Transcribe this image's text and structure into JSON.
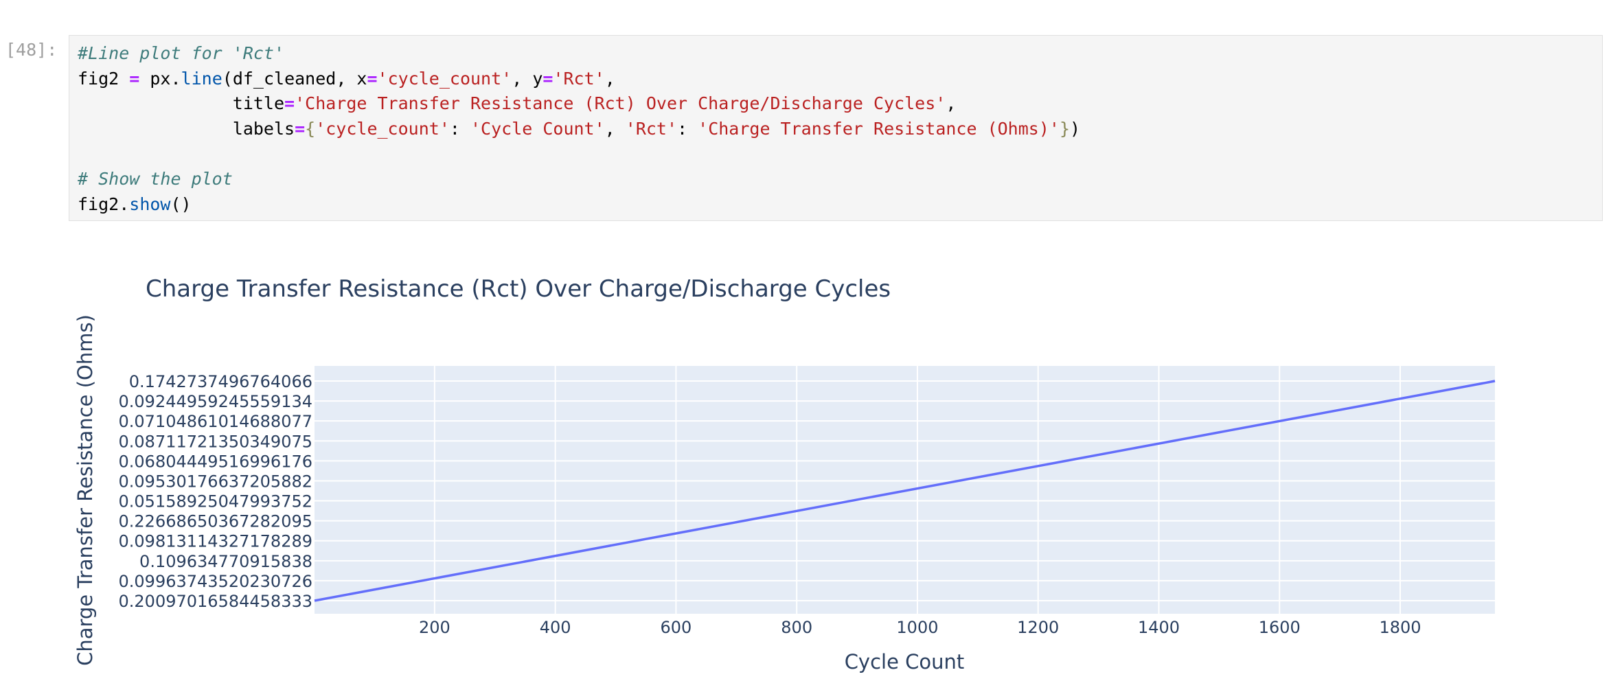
{
  "cell": {
    "prompt": "[48]:",
    "code_lines": [
      [
        {
          "t": "#Line plot for 'Rct'",
          "c": "cm"
        }
      ],
      [
        {
          "t": "fig2 ",
          "c": ""
        },
        {
          "t": "=",
          "c": "op"
        },
        {
          "t": " px.",
          "c": ""
        },
        {
          "t": "line",
          "c": "fn"
        },
        {
          "t": "(df_cleaned, x",
          "c": ""
        },
        {
          "t": "=",
          "c": "op"
        },
        {
          "t": "'cycle_count'",
          "c": "st"
        },
        {
          "t": ", y",
          "c": ""
        },
        {
          "t": "=",
          "c": "op"
        },
        {
          "t": "'Rct'",
          "c": "st"
        },
        {
          "t": ",",
          "c": ""
        }
      ],
      [
        {
          "t": "               title",
          "c": ""
        },
        {
          "t": "=",
          "c": "op"
        },
        {
          "t": "'Charge Transfer Resistance (Rct) Over Charge/Discharge Cycles'",
          "c": "st"
        },
        {
          "t": ",",
          "c": ""
        }
      ],
      [
        {
          "t": "               labels",
          "c": ""
        },
        {
          "t": "=",
          "c": "op"
        },
        {
          "t": "{",
          "c": "br"
        },
        {
          "t": "'cycle_count'",
          "c": "st"
        },
        {
          "t": ": ",
          "c": ""
        },
        {
          "t": "'Cycle Count'",
          "c": "st"
        },
        {
          "t": ", ",
          "c": ""
        },
        {
          "t": "'Rct'",
          "c": "st"
        },
        {
          "t": ": ",
          "c": ""
        },
        {
          "t": "'Charge Transfer Resistance (Ohms)'",
          "c": "st"
        },
        {
          "t": "}",
          "c": "br"
        },
        {
          "t": ")",
          "c": ""
        }
      ],
      [],
      [
        {
          "t": "# Show the plot",
          "c": "cm"
        }
      ],
      [
        {
          "t": "fig2.",
          "c": ""
        },
        {
          "t": "show",
          "c": "fn"
        },
        {
          "t": "()",
          "c": ""
        }
      ]
    ]
  },
  "chart_data": {
    "type": "line",
    "title": "Charge Transfer Resistance (Rct) Over Charge/Discharge Cycles",
    "xlabel": "Cycle Count",
    "ylabel": "Charge Transfer Resistance (Ohms)",
    "xlim": [
      1,
      1957
    ],
    "x_ticks": [
      200,
      400,
      600,
      800,
      1000,
      1200,
      1400,
      1600,
      1800
    ],
    "y_axis_type": "category",
    "y_categories": [
      "0.20097016584458333",
      "0.09963743520230726",
      "0.109634770915838",
      "0.09813114327178289",
      "0.22668650367282095",
      "0.05158925047993752",
      "0.09530176637205882",
      "0.06804449516996176",
      "0.08711721350349075",
      "0.07104861014688077",
      "0.09244959245559134",
      "0.1742737496764066"
    ],
    "series": [
      {
        "color": "#636efa",
        "x": [
          1,
          1957
        ],
        "y_category_index": [
          0,
          11
        ]
      }
    ],
    "grid": true,
    "colors": {
      "plot_bg": "#e5ecf6",
      "grid": "#ffffff",
      "text": "#2a3f5f",
      "line": "#636efa"
    }
  }
}
